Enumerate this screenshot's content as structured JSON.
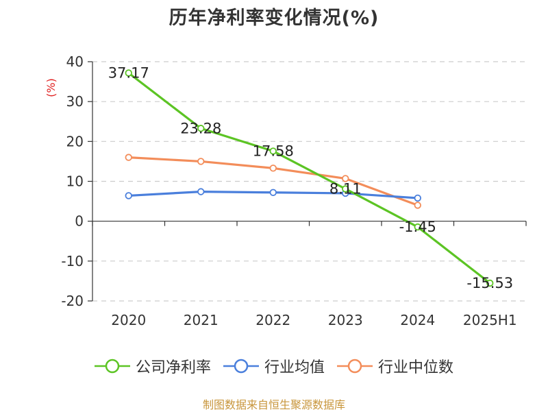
{
  "title": "历年净利率变化情况(%)",
  "footer": "制图数据来自恒生聚源数据库",
  "chart_data": {
    "type": "line",
    "title": "历年净利率变化情况(%)",
    "xlabel": "",
    "ylabel": "(%)",
    "categories": [
      "2020",
      "2021",
      "2022",
      "2023",
      "2024",
      "2025H1"
    ],
    "ylim": [
      -20,
      40
    ],
    "yticks": [
      -20,
      -10,
      0,
      10,
      20,
      30,
      40
    ],
    "grid": true,
    "legend_position": "bottom",
    "ylabel_color": "#e02020",
    "series": [
      {
        "name": "公司净利率",
        "color": "#5cc424",
        "values": [
          37.17,
          23.28,
          17.58,
          8.11,
          -1.45,
          -15.53
        ],
        "labels": [
          "37.17",
          "23.28",
          "17.58",
          "8.11",
          "-1.45",
          "-15.53"
        ]
      },
      {
        "name": "行业均值",
        "color": "#4a7fdc",
        "values": [
          6.4,
          7.4,
          7.2,
          7.0,
          5.8,
          null
        ]
      },
      {
        "name": "行业中位数",
        "color": "#f38d5a",
        "values": [
          16.0,
          15.0,
          13.3,
          10.7,
          4.0,
          null
        ]
      }
    ]
  }
}
